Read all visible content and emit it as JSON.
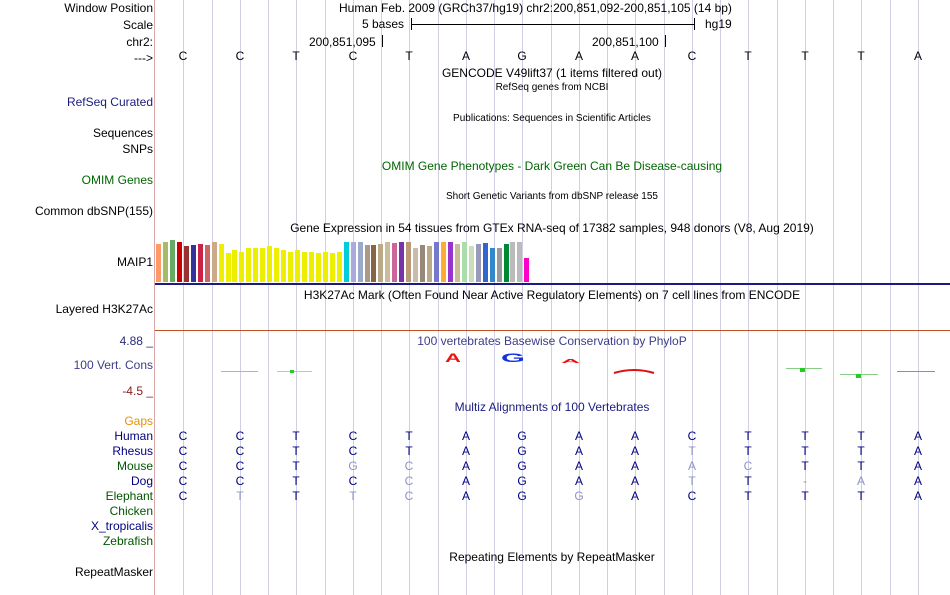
{
  "header": {
    "window_position_label": "Window Position",
    "window_position_value": "Human Feb. 2009 (GRCh37/hg19)   chr2:200,851,092-200,851,105 (14 bp)",
    "scale_label": "Scale",
    "scale_text": "5 bases",
    "scale_assembly": "hg19",
    "chrom_label": "chr2:",
    "coord_left": "200,851,095",
    "coord_right": "200,851,100",
    "strand_label": "--->"
  },
  "sequence": [
    "C",
    "C",
    "T",
    "C",
    "T",
    "A",
    "G",
    "A",
    "A",
    "C",
    "T",
    "T",
    "T",
    "A"
  ],
  "tracks": {
    "gencode_title": "GENCODE V49lift37 (1 items filtered out)",
    "refseq_title": "RefSeq genes from NCBI",
    "refseq_label": "RefSeq Curated",
    "publications_title": "Publications: Sequences in Scientific Articles",
    "sequences_label": "Sequences",
    "snps_label": "SNPs",
    "omim_title": "OMIM Gene Phenotypes - Dark Green Can Be Disease-causing",
    "omim_label": "OMIM Genes",
    "dbsnp_title": "Short Genetic Variants from dbSNP release 155",
    "dbsnp_label": "Common dbSNP(155)",
    "gtex_title": "Gene Expression in 54 tissues from GTEx RNA-seq of 17382 samples, 948 donors (V8, Aug 2019)",
    "gtex_label": "MAIP1",
    "h3k27_title": "H3K27Ac Mark (Often Found Near Active Regulatory Elements) on 7 cell lines from ENCODE",
    "h3k27_label": "Layered H3K27Ac",
    "phylop_title": "100 vertebrates Basewise Conservation by PhyloP",
    "phylop_label": "100 Vert. Cons",
    "phylop_max": "4.88 _",
    "phylop_min": "-4.5 _",
    "phylop_letters": [
      "A",
      "G",
      "A"
    ],
    "multiz_title": "Multiz Alignments of 100 Vertebrates",
    "gaps_label": "Gaps",
    "rmsk_title": "Repeating Elements by RepeatMasker",
    "rmsk_label": "RepeatMasker"
  },
  "gtex_values": [
    0.9,
    0.95,
    1.0,
    0.95,
    0.85,
    0.88,
    0.9,
    0.88,
    0.95,
    0.9,
    0.7,
    0.75,
    0.72,
    0.8,
    0.82,
    0.8,
    0.85,
    0.82,
    0.75,
    0.72,
    0.75,
    0.72,
    0.72,
    0.7,
    0.72,
    0.7,
    0.72,
    0.95,
    0.95,
    0.95,
    0.88,
    0.88,
    0.9,
    0.95,
    0.92,
    0.95,
    0.95,
    0.8,
    0.88,
    0.85,
    0.95,
    0.95,
    0.95,
    0.9,
    0.95,
    0.85,
    0.9,
    0.92,
    0.8,
    0.82,
    0.9,
    0.95,
    0.95,
    0.58
  ],
  "gtex_colors": [
    "#ff9966",
    "#aabb66",
    "#66aa66",
    "#cc0000",
    "#993333",
    "#333399",
    "#cc2244",
    "#cc6666",
    "#ccaa88",
    "#eeee00",
    "#eeee00",
    "#eeee00",
    "#eeee00",
    "#eeee00",
    "#eeee00",
    "#eeee00",
    "#eeee00",
    "#eeee00",
    "#eeee00",
    "#eeee00",
    "#eeee00",
    "#eeee00",
    "#eeee00",
    "#eeee00",
    "#eeee00",
    "#eeee00",
    "#eeee00",
    "#00ccdd",
    "#aaaadd",
    "#99aacc",
    "#aa9988",
    "#886644",
    "#bbaa88",
    "#ccbb99",
    "#cc6699",
    "#7733aa",
    "#bb9977",
    "#ccbbaa",
    "#998877",
    "#bbaa88",
    "#7777cc",
    "#ffaa33",
    "#9933cc",
    "#ccbb99",
    "#aaddaa",
    "#ccddbb",
    "#9999bb",
    "#3366cc",
    "#3388cc",
    "#999999",
    "#008833",
    "#bbbbbb",
    "#bbbbbb",
    "#ff00cc"
  ],
  "multiz": [
    {
      "species": "Human",
      "color": "#000080",
      "bases": [
        "C",
        "C",
        "T",
        "C",
        "T",
        "A",
        "G",
        "A",
        "A",
        "C",
        "T",
        "T",
        "T",
        "A"
      ],
      "faded": [
        0,
        0,
        0,
        0,
        0,
        0,
        0,
        0,
        0,
        0,
        0,
        0,
        0,
        0
      ]
    },
    {
      "species": "Rhesus",
      "color": "#000080",
      "bases": [
        "C",
        "C",
        "T",
        "C",
        "T",
        "A",
        "G",
        "A",
        "A",
        "T",
        "T",
        "T",
        "T",
        "A"
      ],
      "faded": [
        0,
        0,
        0,
        0,
        0,
        0,
        0,
        0,
        0,
        1,
        0,
        0,
        0,
        0
      ]
    },
    {
      "species": "Mouse",
      "color": "#005500",
      "bases": [
        "C",
        "C",
        "T",
        "G",
        "C",
        "A",
        "G",
        "A",
        "A",
        "A",
        "C",
        "T",
        "T",
        "A"
      ],
      "faded": [
        0,
        0,
        0,
        1,
        1,
        0,
        0,
        0,
        0,
        1,
        1,
        0,
        0,
        0
      ]
    },
    {
      "species": "Dog",
      "color": "#000080",
      "bases": [
        "C",
        "C",
        "T",
        "C",
        "C",
        "A",
        "G",
        "A",
        "A",
        "T",
        "T",
        "-",
        "A",
        "A"
      ],
      "faded": [
        0,
        0,
        0,
        0,
        1,
        0,
        0,
        0,
        0,
        1,
        0,
        1,
        1,
        0
      ]
    },
    {
      "species": "Elephant",
      "color": "#005500",
      "bases": [
        "C",
        "T",
        "T",
        "T",
        "C",
        "A",
        "G",
        "G",
        "A",
        "C",
        "T",
        "T",
        "T",
        "A"
      ],
      "faded": [
        0,
        1,
        0,
        1,
        1,
        0,
        0,
        1,
        0,
        0,
        0,
        0,
        0,
        0
      ]
    },
    {
      "species": "Chicken",
      "color": "#005500",
      "bases": [],
      "faded": []
    },
    {
      "species": "X_tropicalis",
      "color": "#000080",
      "bases": [],
      "faded": []
    },
    {
      "species": "Zebrafish",
      "color": "#005500",
      "bases": [],
      "faded": []
    }
  ],
  "colors": {
    "label_blue": "#1b1b80",
    "label_green": "#005500",
    "phylop_label": "#3d3d8a",
    "phylop_max": "#2b2b7a",
    "phylop_min": "#8a1a1a",
    "gaps": "#e6900a",
    "omim_green": "#006600",
    "refseq_blue": "#1b1b80",
    "faded_base": "#8f93c8"
  }
}
